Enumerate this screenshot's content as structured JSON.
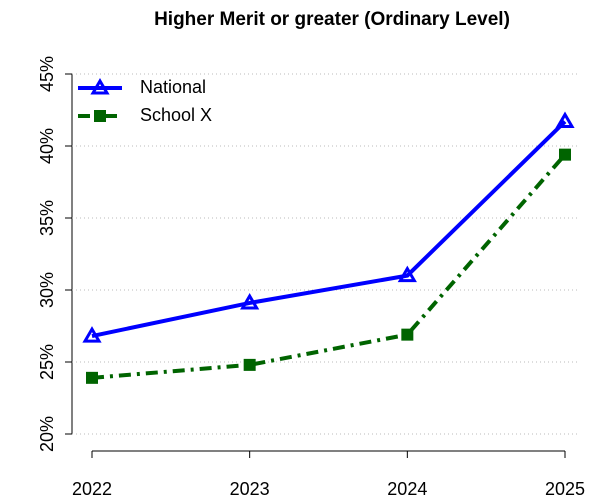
{
  "chart_data": {
    "type": "line",
    "title": "Higher Merit or greater (Ordinary Level)",
    "x": [
      2022,
      2023,
      2024,
      2025
    ],
    "series": [
      {
        "name": "National",
        "color": "#0000ff",
        "linestyle": "solid",
        "marker": "triangle",
        "values": [
          26.8,
          29.1,
          31.0,
          41.7
        ]
      },
      {
        "name": "School X",
        "color": "#006400",
        "linestyle": "dashdot",
        "marker": "square",
        "values": [
          23.9,
          24.8,
          26.9,
          39.4
        ]
      }
    ],
    "xlim": [
      2022,
      2025
    ],
    "xticks": [
      2022,
      2023,
      2024,
      2025
    ],
    "ylim": [
      20,
      45
    ],
    "yticks": [
      {
        "value": 20,
        "label": "20%"
      },
      {
        "value": 25,
        "label": "25%"
      },
      {
        "value": 30,
        "label": "30%"
      },
      {
        "value": 35,
        "label": "35%"
      },
      {
        "value": 40,
        "label": "40%"
      },
      {
        "value": 45,
        "label": "45%"
      }
    ],
    "grid": true,
    "legend": "top-left"
  }
}
